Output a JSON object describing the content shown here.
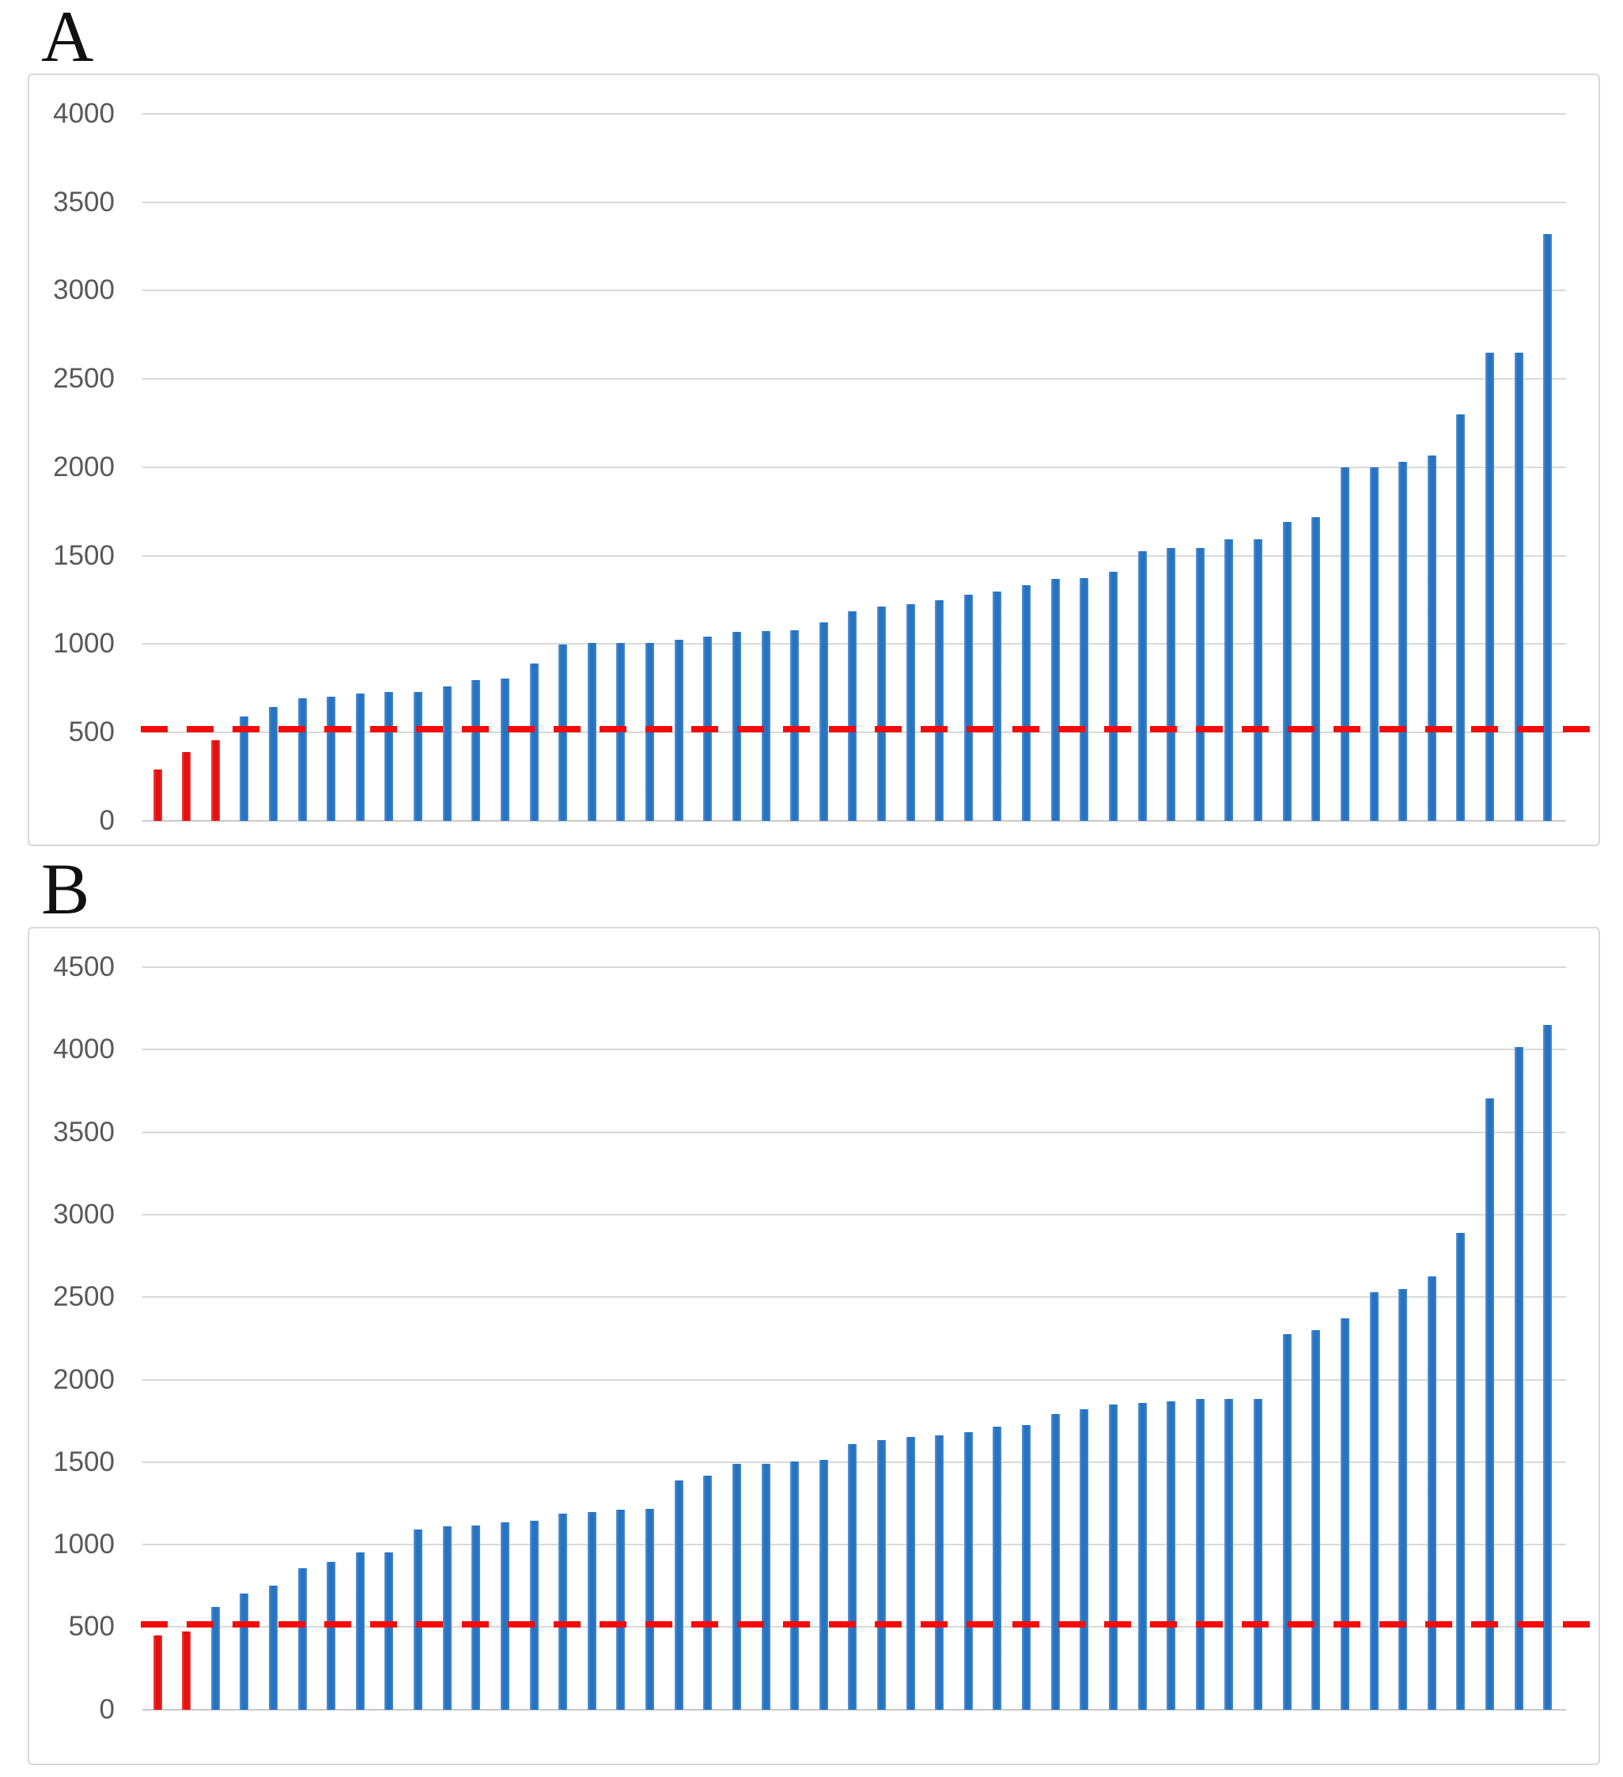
{
  "figure": {
    "panel_a_label": "A",
    "panel_b_label": "B"
  },
  "colors": {
    "bar_blue": "#2673c2",
    "bar_red": "#e60f0f",
    "threshold_red": "#f50a0a",
    "gridline_gray": "#d9d9d9",
    "axis_text_gray": "#595959",
    "chart_border_gray": "#d9d9d9"
  },
  "chart_data": [
    {
      "type": "bar",
      "panel": "A",
      "title": "A",
      "xlabel": "",
      "ylabel": "",
      "ylim": [
        0,
        4000
      ],
      "ytick_step": 500,
      "ytick_labels": [
        "4000",
        "3500",
        "3000",
        "2500",
        "2000",
        "1500",
        "1000",
        "500",
        "0"
      ],
      "grid": true,
      "legend": null,
      "x_axis_labels": null,
      "threshold_line_value": 520,
      "bars_sorted_ascending": true,
      "red_values": [
        290,
        390,
        455
      ],
      "blue_values": [
        590,
        645,
        695,
        705,
        720,
        730,
        730,
        760,
        795,
        805,
        890,
        1000,
        1005,
        1005,
        1005,
        1025,
        1045,
        1070,
        1075,
        1080,
        1125,
        1185,
        1215,
        1225,
        1250,
        1280,
        1300,
        1335,
        1370,
        1375,
        1410,
        1525,
        1545,
        1545,
        1595,
        1595,
        1690,
        1720,
        2000,
        2000,
        2030,
        2070,
        2300,
        2650,
        2650,
        3320
      ]
    },
    {
      "type": "bar",
      "panel": "B",
      "title": "B",
      "xlabel": "",
      "ylabel": "",
      "ylim": [
        0,
        4500
      ],
      "ytick_step": 500,
      "ytick_labels": [
        "4500",
        "4000",
        "3500",
        "3000",
        "2500",
        "2000",
        "1500",
        "1000",
        "500",
        "0"
      ],
      "grid": true,
      "legend": null,
      "x_axis_labels": null,
      "threshold_line_value": 520,
      "bars_sorted_ascending": true,
      "red_values": [
        450,
        475
      ],
      "blue_values": [
        625,
        705,
        755,
        860,
        895,
        955,
        955,
        1095,
        1110,
        1115,
        1135,
        1145,
        1190,
        1200,
        1215,
        1220,
        1390,
        1420,
        1490,
        1490,
        1505,
        1515,
        1610,
        1635,
        1655,
        1665,
        1685,
        1715,
        1725,
        1795,
        1820,
        1850,
        1860,
        1870,
        1885,
        1885,
        1885,
        2275,
        2300,
        2375,
        2530,
        2550,
        2625,
        2890,
        3705,
        4015,
        4150
      ]
    }
  ]
}
